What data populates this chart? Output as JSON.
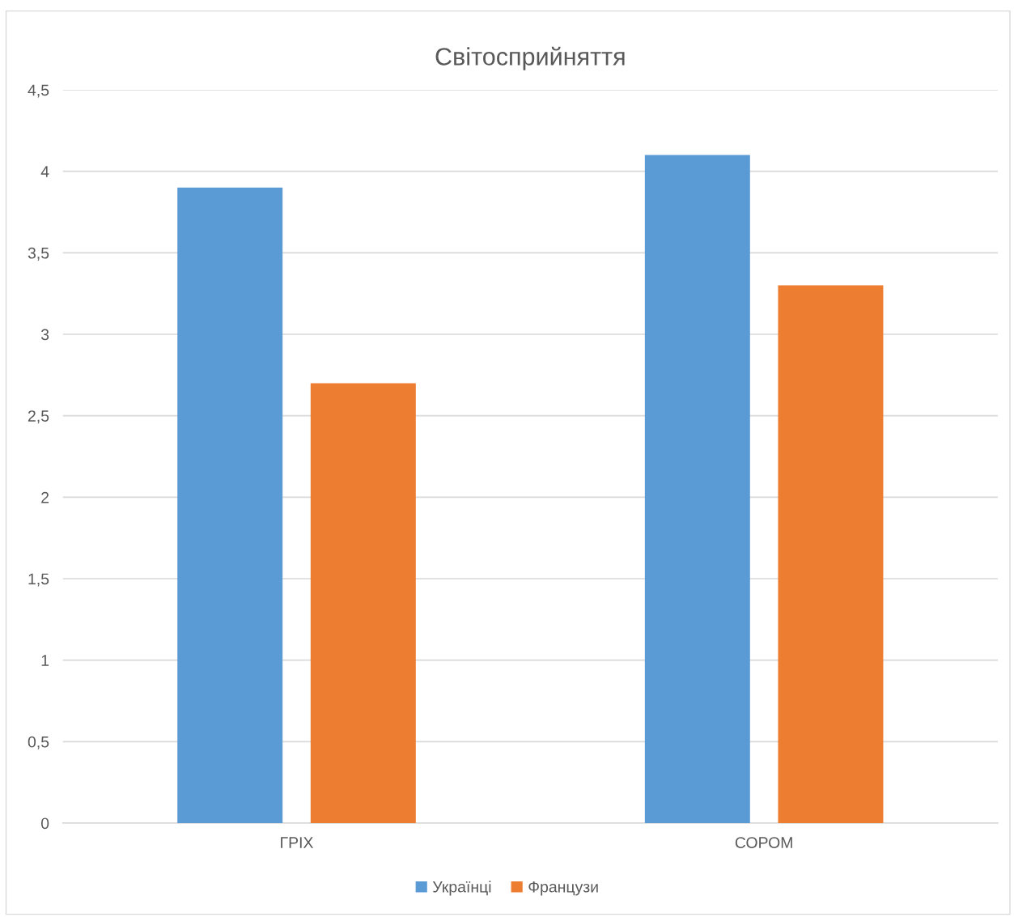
{
  "chart_data": {
    "type": "bar",
    "title": "Світосприйняття",
    "categories": [
      "ГРІХ",
      "СОРОМ"
    ],
    "series": [
      {
        "name": "Українці",
        "color": "#5b9bd5",
        "values": [
          3.9,
          4.1
        ]
      },
      {
        "name": "Французи",
        "color": "#ed7d31",
        "values": [
          2.7,
          3.3
        ]
      }
    ],
    "ylim": [
      0,
      4.5
    ],
    "yticks": [
      0,
      {
        "value": 0.5,
        "label": "0,5"
      },
      1,
      {
        "value": 1.5,
        "label": "1,5"
      },
      2,
      {
        "value": 2.5,
        "label": "2,5"
      },
      3,
      {
        "value": 3.5,
        "label": "3,5"
      },
      4,
      {
        "value": 4.5,
        "label": "4,5"
      }
    ],
    "grid": "y",
    "legend": "bottom"
  }
}
